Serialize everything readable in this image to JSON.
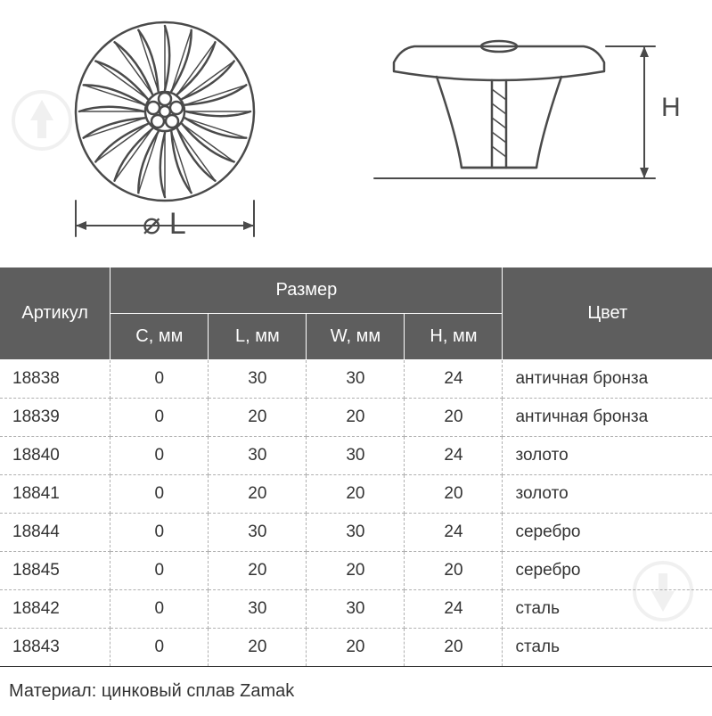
{
  "diagram": {
    "diameter_label": "L",
    "height_label": "H",
    "diameter_symbol": "⌀",
    "stroke_color": "#4a4a4a",
    "stroke_width": 2.5
  },
  "table": {
    "header": {
      "article": "Артикул",
      "size_group": "Размер",
      "color": "Цвет",
      "columns": [
        "C, мм",
        "L, мм",
        "W, мм",
        "H, мм"
      ]
    },
    "rows": [
      {
        "article": "18838",
        "c": "0",
        "l": "30",
        "w": "30",
        "h": "24",
        "color": "античная бронза"
      },
      {
        "article": "18839",
        "c": "0",
        "l": "20",
        "w": "20",
        "h": "20",
        "color": "античная бронза"
      },
      {
        "article": "18840",
        "c": "0",
        "l": "30",
        "w": "30",
        "h": "24",
        "color": "золото"
      },
      {
        "article": "18841",
        "c": "0",
        "l": "20",
        "w": "20",
        "h": "20",
        "color": "золото"
      },
      {
        "article": "18844",
        "c": "0",
        "l": "30",
        "w": "30",
        "h": "24",
        "color": "серебро"
      },
      {
        "article": "18845",
        "c": "0",
        "l": "20",
        "w": "20",
        "h": "20",
        "color": "серебро"
      },
      {
        "article": "18842",
        "c": "0",
        "l": "30",
        "w": "30",
        "h": "24",
        "color": "сталь"
      },
      {
        "article": "18843",
        "c": "0",
        "l": "20",
        "w": "20",
        "h": "20",
        "color": "сталь"
      }
    ],
    "header_bg": "#5e5e5e",
    "header_text_color": "#ffffff",
    "cell_text_color": "#333333",
    "border_dash_color": "#b0b0b0",
    "font_size_header": 20,
    "font_size_cell": 19
  },
  "material_line": "Материал: цинковый сплав Zamak",
  "watermark": {
    "shape": "trowel-in-circle",
    "stroke": "#9e9e9e",
    "opacity": 0.15
  }
}
